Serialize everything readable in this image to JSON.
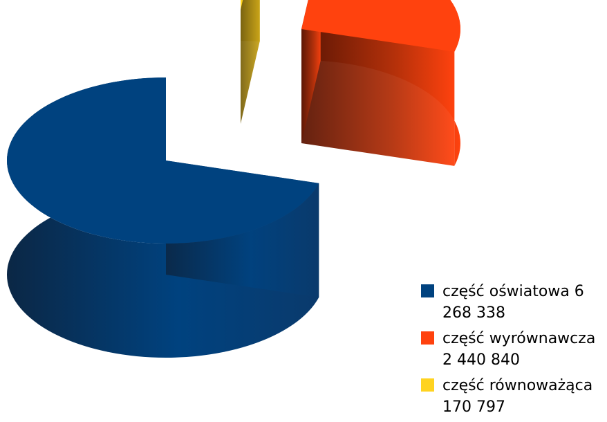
{
  "chart_data": {
    "type": "pie",
    "title": "",
    "is_3d": true,
    "exploded": true,
    "slices": [
      {
        "label": "część oświatowa 6 268 338",
        "value": 6268338,
        "color": "#00427F"
      },
      {
        "label": "część wyrównawcza 2 440 840",
        "value": 2440840,
        "color": "#FF420E"
      },
      {
        "label": "część równoważąca 170 797",
        "value": 170797,
        "color": "#FFD320"
      }
    ],
    "legend_position": "bottom-right"
  }
}
